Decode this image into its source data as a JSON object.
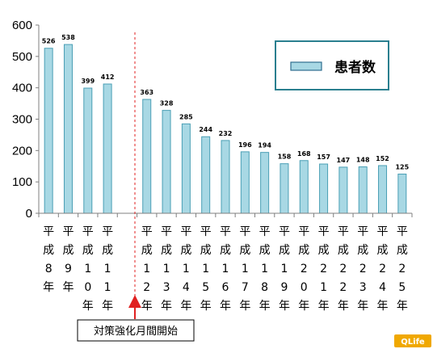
{
  "chart_data": {
    "type": "bar",
    "categories": [
      "平成8年",
      "平成9年",
      "平成10年",
      "平成11年",
      "",
      "平成12年",
      "平成13年",
      "平成14年",
      "平成15年",
      "平成16年",
      "平成17年",
      "平成18年",
      "平成19年",
      "平成20年",
      "平成21年",
      "平成22年",
      "平成23年",
      "平成24年",
      "平成25年"
    ],
    "category_chars": [
      [
        "平",
        "成",
        "8",
        "年"
      ],
      [
        "平",
        "成",
        "9",
        "年"
      ],
      [
        "平",
        "成",
        "1",
        "0",
        "年"
      ],
      [
        "平",
        "成",
        "1",
        "1",
        "年"
      ],
      [],
      [
        "平",
        "成",
        "1",
        "2",
        "年"
      ],
      [
        "平",
        "成",
        "1",
        "3",
        "年"
      ],
      [
        "平",
        "成",
        "1",
        "4",
        "年"
      ],
      [
        "平",
        "成",
        "1",
        "5",
        "年"
      ],
      [
        "平",
        "成",
        "1",
        "6",
        "年"
      ],
      [
        "平",
        "成",
        "1",
        "7",
        "年"
      ],
      [
        "平",
        "成",
        "1",
        "8",
        "年"
      ],
      [
        "平",
        "成",
        "1",
        "9",
        "年"
      ],
      [
        "平",
        "成",
        "2",
        "0",
        "年"
      ],
      [
        "平",
        "成",
        "2",
        "1",
        "年"
      ],
      [
        "平",
        "成",
        "2",
        "2",
        "年"
      ],
      [
        "平",
        "成",
        "2",
        "3",
        "年"
      ],
      [
        "平",
        "成",
        "2",
        "4",
        "年"
      ],
      [
        "平",
        "成",
        "2",
        "5",
        "年"
      ]
    ],
    "series": [
      {
        "name": "患者数",
        "values": [
          526,
          538,
          399,
          412,
          null,
          363,
          328,
          285,
          244,
          232,
          196,
          194,
          158,
          168,
          157,
          147,
          148,
          152,
          125
        ]
      }
    ],
    "ylim": [
      0,
      600
    ],
    "yticks": [
      "0",
      "100",
      "200",
      "300",
      "400",
      "500",
      "600"
    ],
    "grid": false,
    "legend_position": "top-right",
    "bar_color": "#a8d8e4",
    "bar_edge_color": "#4a9fb5",
    "annotation": {
      "text": "対策強化月間開始",
      "after_category": "平成11年",
      "line_color": "#e02020"
    }
  },
  "badge": {
    "text": "QLife",
    "color": "#f0a800"
  }
}
